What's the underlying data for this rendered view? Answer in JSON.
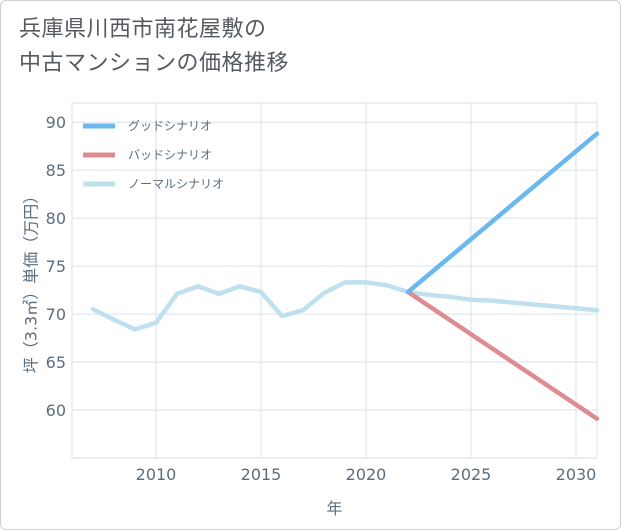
{
  "title_lines": [
    "兵庫県川西市南花屋敷の",
    "中古マンションの価格推移"
  ],
  "chart_data": {
    "type": "line",
    "xlabel": "年",
    "ylabel": "坪（3.3㎡）単価（万円）",
    "xlim": [
      2006,
      2031
    ],
    "ylim": [
      55,
      92
    ],
    "xticks": [
      2010,
      2015,
      2020,
      2025,
      2030
    ],
    "yticks": [
      60,
      65,
      70,
      75,
      80,
      85,
      90
    ],
    "grid": true,
    "legend_position": "top-left",
    "series": [
      {
        "name": "グッドシナリオ",
        "color": "#6bb8ec",
        "x": [
          2022,
          2031
        ],
        "y": [
          72.3,
          88.8
        ]
      },
      {
        "name": "バッドシナリオ",
        "color": "#de8c93",
        "x": [
          2022,
          2031
        ],
        "y": [
          72.3,
          59.1
        ]
      },
      {
        "name": "ノーマルシナリオ",
        "color": "#bfe0ef",
        "x": [
          2007,
          2008,
          2009,
          2010,
          2011,
          2012,
          2013,
          2014,
          2015,
          2016,
          2017,
          2018,
          2019,
          2020,
          2021,
          2022,
          2023,
          2024,
          2025,
          2026,
          2027,
          2028,
          2029,
          2030,
          2031
        ],
        "y": [
          70.5,
          69.4,
          68.4,
          69.1,
          72.1,
          72.9,
          72.1,
          72.9,
          72.3,
          69.8,
          70.4,
          72.2,
          73.3,
          73.3,
          73.0,
          72.3,
          72.0,
          71.8,
          71.5,
          71.4,
          71.2,
          71.0,
          70.8,
          70.6,
          70.4
        ]
      }
    ]
  }
}
